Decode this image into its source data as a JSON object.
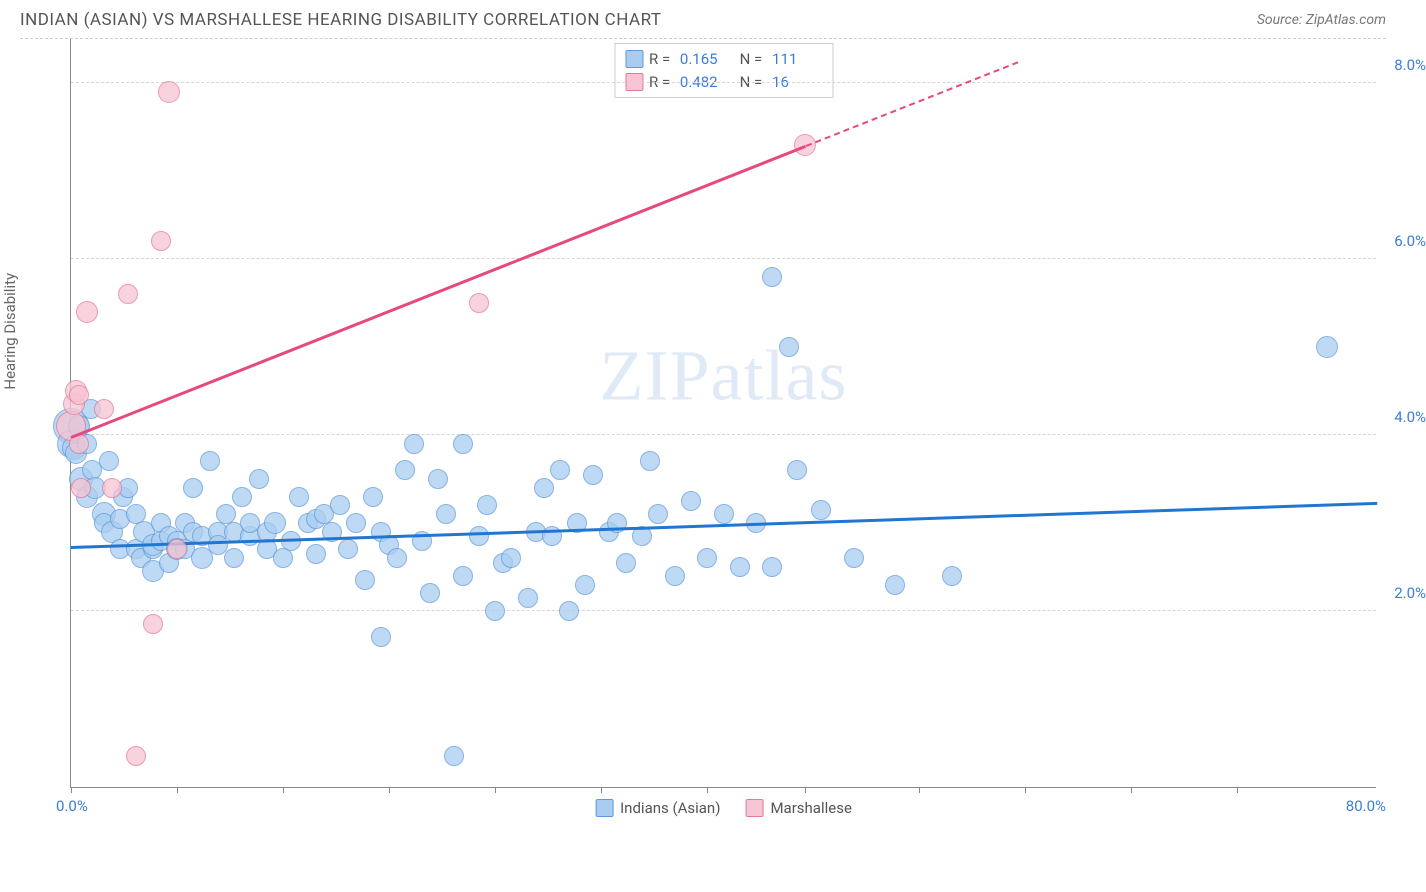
{
  "title": "INDIAN (ASIAN) VS MARSHALLESE HEARING DISABILITY CORRELATION CHART",
  "source": "Source: ZipAtlas.com",
  "y_axis_label": "Hearing Disability",
  "watermark_a": "ZIP",
  "watermark_b": "atlas",
  "chart": {
    "type": "scatter",
    "xlim": [
      0,
      80
    ],
    "ylim": [
      0,
      8.5
    ],
    "x_tick_positions": [
      0,
      6.5,
      13,
      19.5,
      26,
      32.5,
      39,
      45,
      52,
      58.5,
      65,
      71.5
    ],
    "x_tick_labels": {
      "left": "0.0%",
      "right": "80.0%"
    },
    "y_gridlines": [
      2.0,
      4.0,
      6.0,
      8.0
    ],
    "y_tick_labels": [
      "2.0%",
      "4.0%",
      "6.0%",
      "8.0%"
    ],
    "grid_color": "#d5d5d5",
    "axis_color": "#888888",
    "background_color": "#ffffff",
    "series": [
      {
        "name": "Indians (Asian)",
        "fill": "#a9cdf1",
        "stroke": "#5f9ad9",
        "line_color": "#2176d2",
        "opacity": 0.75,
        "marker_radius": 10,
        "R": "0.165",
        "N": "111",
        "trend": {
          "x1": 0,
          "y1": 2.75,
          "x2": 80,
          "y2": 3.25
        },
        "points": [
          [
            0,
            4.1,
            18
          ],
          [
            0,
            3.9,
            14
          ],
          [
            0.2,
            3.85,
            12
          ],
          [
            0.3,
            3.8,
            11
          ],
          [
            0.5,
            4.1,
            11
          ],
          [
            0.6,
            3.5,
            12
          ],
          [
            1,
            3.3,
            11
          ],
          [
            1,
            3.9,
            10
          ],
          [
            1.2,
            4.3,
            10
          ],
          [
            1.3,
            3.6,
            10
          ],
          [
            1.5,
            3.4,
            11
          ],
          [
            2,
            3.1,
            12
          ],
          [
            2,
            3.0,
            10
          ],
          [
            2.3,
            3.7,
            10
          ],
          [
            2.5,
            2.9,
            11
          ],
          [
            3,
            3.05,
            10
          ],
          [
            3,
            2.7,
            10
          ],
          [
            3.2,
            3.3,
            10
          ],
          [
            3.5,
            3.4,
            10
          ],
          [
            4,
            2.7,
            10
          ],
          [
            4,
            3.1,
            10
          ],
          [
            4.3,
            2.6,
            10
          ],
          [
            4.5,
            2.9,
            11
          ],
          [
            5,
            2.7,
            10
          ],
          [
            5,
            2.75,
            11
          ],
          [
            5,
            2.45,
            11
          ],
          [
            5.5,
            3.0,
            10
          ],
          [
            5.5,
            2.8,
            10
          ],
          [
            6,
            2.85,
            10
          ],
          [
            6,
            2.55,
            10
          ],
          [
            6.5,
            2.8,
            10
          ],
          [
            6.5,
            2.7,
            11
          ],
          [
            7,
            3.0,
            10
          ],
          [
            7,
            2.7,
            10
          ],
          [
            7.5,
            3.4,
            10
          ],
          [
            7.5,
            2.9,
            10
          ],
          [
            8,
            2.6,
            11
          ],
          [
            8,
            2.85,
            10
          ],
          [
            8.5,
            3.7,
            10
          ],
          [
            9,
            2.9,
            10
          ],
          [
            9,
            2.75,
            10
          ],
          [
            9.5,
            3.1,
            10
          ],
          [
            10,
            2.6,
            10
          ],
          [
            10,
            2.9,
            10
          ],
          [
            10.5,
            3.3,
            10
          ],
          [
            11,
            2.85,
            10
          ],
          [
            11,
            3.0,
            10
          ],
          [
            11.5,
            3.5,
            10
          ],
          [
            12,
            2.9,
            10
          ],
          [
            12,
            2.7,
            10
          ],
          [
            12.5,
            3.0,
            11
          ],
          [
            13,
            2.6,
            10
          ],
          [
            13.5,
            2.8,
            10
          ],
          [
            14,
            3.3,
            10
          ],
          [
            14.5,
            3.0,
            10
          ],
          [
            15,
            3.05,
            10
          ],
          [
            15,
            2.65,
            10
          ],
          [
            15.5,
            3.1,
            10
          ],
          [
            16,
            2.9,
            10
          ],
          [
            16.5,
            3.2,
            10
          ],
          [
            17,
            2.7,
            10
          ],
          [
            17.5,
            3.0,
            10
          ],
          [
            18,
            2.35,
            10
          ],
          [
            18.5,
            3.3,
            10
          ],
          [
            19,
            1.7,
            10
          ],
          [
            19,
            2.9,
            10
          ],
          [
            19.5,
            2.75,
            10
          ],
          [
            20,
            2.6,
            10
          ],
          [
            20.5,
            3.6,
            10
          ],
          [
            21,
            3.9,
            10
          ],
          [
            21.5,
            2.8,
            10
          ],
          [
            22,
            2.2,
            10
          ],
          [
            22.5,
            3.5,
            10
          ],
          [
            23,
            3.1,
            10
          ],
          [
            23.5,
            0.35,
            10
          ],
          [
            24,
            2.4,
            10
          ],
          [
            24,
            3.9,
            10
          ],
          [
            25,
            2.85,
            10
          ],
          [
            25.5,
            3.2,
            10
          ],
          [
            26,
            2.0,
            10
          ],
          [
            26.5,
            2.55,
            10
          ],
          [
            27,
            2.6,
            10
          ],
          [
            28,
            2.15,
            10
          ],
          [
            28.5,
            2.9,
            10
          ],
          [
            29,
            3.4,
            10
          ],
          [
            29.5,
            2.85,
            10
          ],
          [
            30,
            3.6,
            10
          ],
          [
            30.5,
            2.0,
            10
          ],
          [
            31,
            3.0,
            10
          ],
          [
            31.5,
            2.3,
            10
          ],
          [
            32,
            3.55,
            10
          ],
          [
            33,
            2.9,
            10
          ],
          [
            33.5,
            3.0,
            10
          ],
          [
            34,
            2.55,
            10
          ],
          [
            35,
            2.85,
            10
          ],
          [
            35.5,
            3.7,
            10
          ],
          [
            36,
            3.1,
            10
          ],
          [
            37,
            2.4,
            10
          ],
          [
            38,
            3.25,
            10
          ],
          [
            39,
            2.6,
            10
          ],
          [
            40,
            3.1,
            10
          ],
          [
            41,
            2.5,
            10
          ],
          [
            42,
            3.0,
            10
          ],
          [
            43,
            5.8,
            10
          ],
          [
            43,
            2.5,
            10
          ],
          [
            44,
            5.0,
            10
          ],
          [
            44.5,
            3.6,
            10
          ],
          [
            46,
            3.15,
            10
          ],
          [
            48,
            2.6,
            10
          ],
          [
            50.5,
            2.3,
            10
          ],
          [
            54,
            2.4,
            10
          ],
          [
            77,
            5.0,
            11
          ]
        ]
      },
      {
        "name": "Marshallese",
        "fill": "#f6c4d2",
        "stroke": "#e47a9a",
        "line_color": "#e64980",
        "opacity": 0.75,
        "marker_radius": 10,
        "R": "0.482",
        "N": "16",
        "trend": {
          "x1": 0,
          "y1": 4.0,
          "x2": 45,
          "y2": 7.3
        },
        "trend_dash": {
          "x1": 45,
          "y1": 7.3,
          "x2": 58,
          "y2": 8.25
        },
        "points": [
          [
            0,
            4.1,
            15
          ],
          [
            0.2,
            4.35,
            11
          ],
          [
            0.3,
            4.5,
            11
          ],
          [
            0.5,
            3.9,
            10
          ],
          [
            0.5,
            4.45,
            10
          ],
          [
            0.6,
            3.4,
            10
          ],
          [
            1,
            5.4,
            11
          ],
          [
            2,
            4.3,
            10
          ],
          [
            2.5,
            3.4,
            10
          ],
          [
            3.5,
            5.6,
            10
          ],
          [
            4,
            0.35,
            10
          ],
          [
            5,
            1.85,
            10
          ],
          [
            5.5,
            6.2,
            10
          ],
          [
            6,
            7.9,
            11
          ],
          [
            6.5,
            2.7,
            10
          ],
          [
            25,
            5.5,
            10
          ],
          [
            45,
            7.3,
            11
          ]
        ]
      }
    ]
  }
}
